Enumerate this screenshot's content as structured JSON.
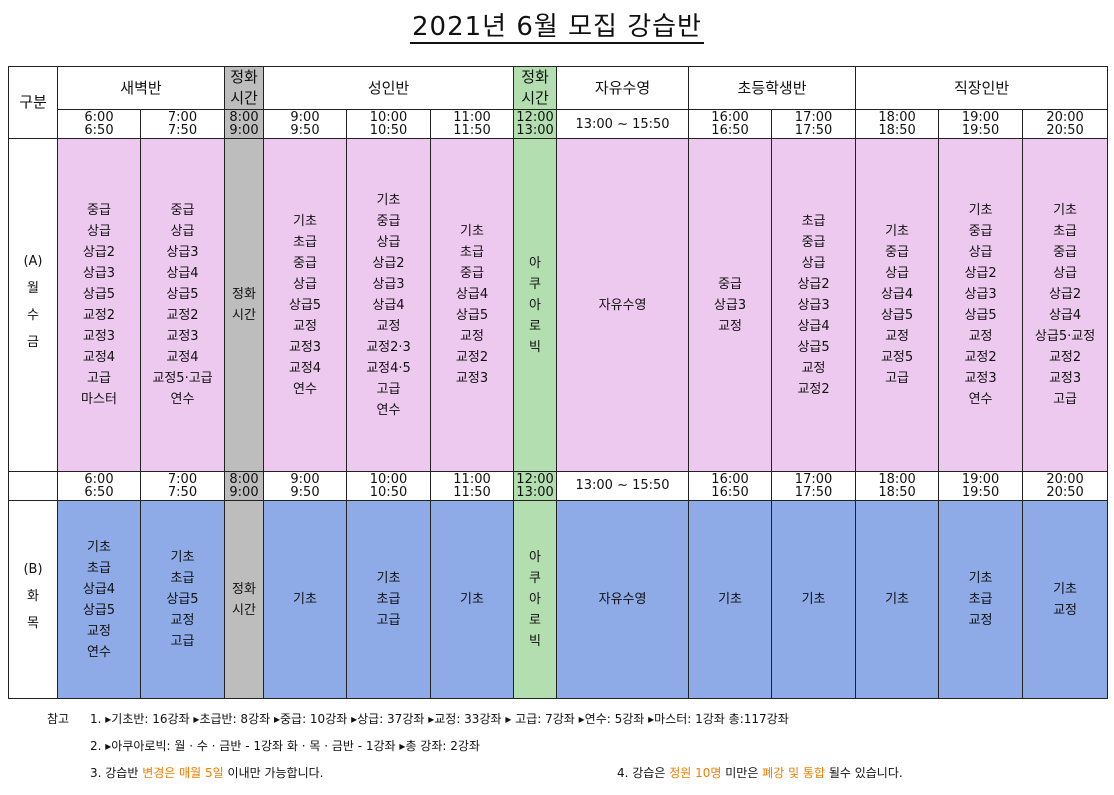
{
  "title": "2021년 6월 모집 강습반",
  "header": {
    "gubun": "구분",
    "saebyuk": "새벽반",
    "lunch1": [
      "정화",
      "시간"
    ],
    "seongin": "성인반",
    "lunch2": [
      "정화",
      "시간"
    ],
    "free": "자유수영",
    "child": "초등학생반",
    "worker": "직장인반"
  },
  "times": [
    "6:00\n6:50",
    "7:00\n7:50",
    "8:00\n9:00",
    "9:00\n9:50",
    "10:00\n10:50",
    "11:00\n11:50",
    "12:00\n13:00",
    "13:00 ~ 15:50",
    "16:00\n16:50",
    "17:00\n17:50",
    "18:00\n18:50",
    "19:00\n19:50",
    "20:00\n20:50"
  ],
  "row_a": {
    "label": [
      "(A)",
      "월",
      "수",
      "금"
    ],
    "cells": [
      [
        "중급",
        "상급",
        "상급2",
        "상급3",
        "상급5",
        "교정2",
        "교정3",
        "교정4",
        "고급",
        "마스터"
      ],
      [
        "중급",
        "상급",
        "상급3",
        "상급4",
        "상급5",
        "교정2",
        "교정3",
        "교정4",
        "교정5·고급",
        "연수"
      ],
      [
        "정화",
        "시간"
      ],
      [
        "기초",
        "초급",
        "중급",
        "상급",
        "상급5",
        "교정",
        "교정3",
        "교정4",
        "연수"
      ],
      [
        "기초",
        "중급",
        "상급",
        "상급2",
        "상급3",
        "상급4",
        "교정",
        "교정2·3",
        "교정4·5",
        "고급",
        "연수"
      ],
      [
        "기초",
        "초급",
        "중급",
        "상급4",
        "상급5",
        "교정",
        "교정2",
        "교정3"
      ],
      [
        "아",
        "쿠",
        "아",
        "로",
        "빅"
      ],
      [
        "자유수영"
      ],
      [
        "중급",
        "상급3",
        "교정"
      ],
      [
        "초급",
        "중급",
        "상급",
        "상급2",
        "상급3",
        "상급4",
        "상급5",
        "교정",
        "교정2"
      ],
      [
        "기초",
        "중급",
        "상급",
        "상급4",
        "상급5",
        "교정",
        "교정5",
        "고급"
      ],
      [
        "기초",
        "중급",
        "상급",
        "상급2",
        "상급3",
        "상급5",
        "교정",
        "교정2",
        "교정3",
        "연수"
      ],
      [
        "기초",
        "초급",
        "중급",
        "상급",
        "상급2",
        "상급4",
        "상급5·교정",
        "교정2",
        "교정3",
        "고급"
      ]
    ]
  },
  "row_b": {
    "label": [
      "(B)",
      "화",
      "목"
    ],
    "cells": [
      [
        "기초",
        "초급",
        "상급4",
        "상급5",
        "교정",
        "연수"
      ],
      [
        "기초",
        "초급",
        "상급5",
        "교정",
        "고급"
      ],
      [
        "정화",
        "시간"
      ],
      [
        "기초"
      ],
      [
        "기초",
        "초급",
        "고급"
      ],
      [
        "기초"
      ],
      [
        "아",
        "쿠",
        "아",
        "로",
        "빅"
      ],
      [
        "자유수영"
      ],
      [
        "기초"
      ],
      [
        "기초"
      ],
      [
        "기초"
      ],
      [
        "기초",
        "초급",
        "교정"
      ],
      [
        "기초",
        "교정"
      ]
    ]
  },
  "notes": {
    "label": "참고",
    "line1": "1. ▸기초반: 16강좌   ▸초급반: 8강좌   ▸중급: 10강좌   ▸상급: 37강좌   ▸교정: 33강좌  ▸ 고급: 7강좌   ▸연수: 5강좌   ▸마스터: 1강좌      총:117강좌",
    "line2": "2. ▸아쿠아로빅: 월 · 수 · 금반 - 1강좌      화 · 목 · 금반 - 1강좌      ▸총 강좌: 2강좌",
    "line3_a": "3. 강습반 ",
    "line3_b": "변경은 매월 5일",
    "line3_c": " 이내만 가능합니다.",
    "line4_a": "4. 강습은 ",
    "line4_b": "정원 10명",
    "line4_c": " 미만은 ",
    "line4_d": "폐강 및 통합",
    "line4_e": " 될수 있습니다."
  },
  "colors": {
    "pink": "#eec9ef",
    "blue": "#8eabe8",
    "lunch_gray": "#bdbdbd",
    "aqua_green": "#b3deb0",
    "note_orange": "#f07d00"
  }
}
